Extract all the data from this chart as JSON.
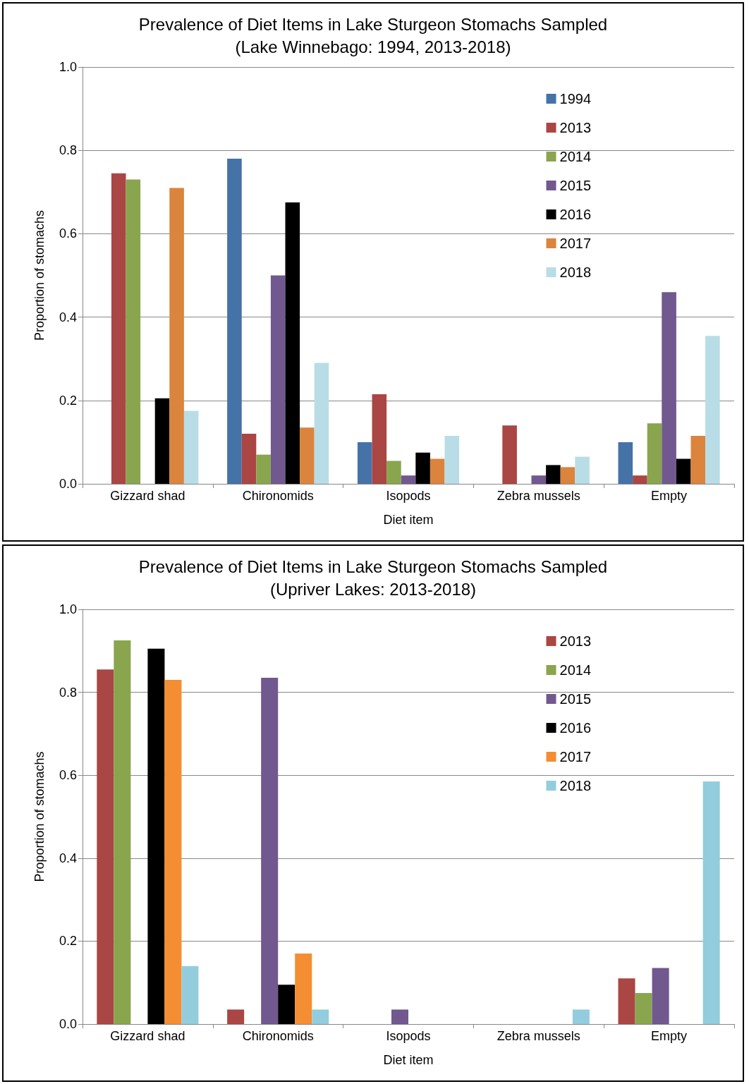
{
  "chart_data": [
    {
      "type": "bar",
      "title": "Prevalence of Diet Items in Lake Sturgeon Stomachs Sampled",
      "subtitle": "(Lake Winnebago: 1994, 2013-2018)",
      "xlabel": "Diet item",
      "ylabel": "Proportion of stomachs",
      "categories": [
        "Gizzard shad",
        "Chironomids",
        "Isopods",
        "Zebra mussels",
        "Empty"
      ],
      "series": [
        {
          "name": "1994",
          "color": "#4572a7",
          "values": [
            0,
            0.78,
            0.1,
            0,
            0.1
          ]
        },
        {
          "name": "2013",
          "color": "#aa4643",
          "values": [
            0.745,
            0.12,
            0.215,
            0.14,
            0.02
          ]
        },
        {
          "name": "2014",
          "color": "#89a54e",
          "values": [
            0.73,
            0.07,
            0.055,
            0,
            0.145
          ]
        },
        {
          "name": "2015",
          "color": "#71588f",
          "values": [
            0,
            0.5,
            0.02,
            0.02,
            0.46
          ]
        },
        {
          "name": "2016",
          "color": "#000000",
          "values": [
            0.205,
            0.675,
            0.075,
            0.045,
            0.06
          ]
        },
        {
          "name": "2017",
          "color": "#db843d",
          "values": [
            0.71,
            0.135,
            0.06,
            0.04,
            0.115
          ]
        },
        {
          "name": "2018",
          "color": "#b9dde7",
          "values": [
            0.175,
            0.29,
            0.115,
            0.065,
            0.355
          ]
        }
      ],
      "ylim": [
        0,
        1
      ],
      "yticks": [
        {
          "value": 0,
          "label": "0.0"
        },
        {
          "value": 0.2,
          "label": "0.2"
        },
        {
          "value": 0.4,
          "label": "0.4"
        },
        {
          "value": 0.6,
          "label": "0.6"
        },
        {
          "value": 0.8,
          "label": "0.8"
        },
        {
          "value": 1,
          "label": "1.0"
        }
      ],
      "grid": "y",
      "legend": "top right"
    },
    {
      "type": "bar",
      "title": "Prevalence of Diet Items in Lake Sturgeon Stomachs Sampled",
      "subtitle": "(Upriver Lakes: 2013-2018)",
      "xlabel": "Diet item",
      "ylabel": "Proportion of stomachs",
      "categories": [
        "Gizzard shad",
        "Chironomids",
        "Isopods",
        "Zebra mussels",
        "Empty"
      ],
      "series": [
        {
          "name": "2013",
          "color": "#aa4643",
          "values": [
            0.855,
            0.035,
            0,
            0,
            0.11
          ]
        },
        {
          "name": "2014",
          "color": "#89a54e",
          "values": [
            0.925,
            0,
            0,
            0,
            0.075
          ]
        },
        {
          "name": "2015",
          "color": "#71588f",
          "values": [
            0,
            0.835,
            0.035,
            0,
            0.135
          ]
        },
        {
          "name": "2016",
          "color": "#000000",
          "values": [
            0.905,
            0.095,
            0,
            0,
            0
          ]
        },
        {
          "name": "2017",
          "color": "#f58d33",
          "values": [
            0.83,
            0.17,
            0,
            0,
            0
          ]
        },
        {
          "name": "2018",
          "color": "#93cddd",
          "values": [
            0.14,
            0.035,
            0,
            0.035,
            0.585
          ]
        }
      ],
      "ylim": [
        0,
        1
      ],
      "yticks": [
        {
          "value": 0,
          "label": "0.0"
        },
        {
          "value": 0.2,
          "label": "0.2"
        },
        {
          "value": 0.4,
          "label": "0.4"
        },
        {
          "value": 0.6,
          "label": "0.6"
        },
        {
          "value": 0.8,
          "label": "0.8"
        },
        {
          "value": 1,
          "label": "1.0"
        }
      ],
      "grid": "y",
      "legend": "top right"
    }
  ]
}
